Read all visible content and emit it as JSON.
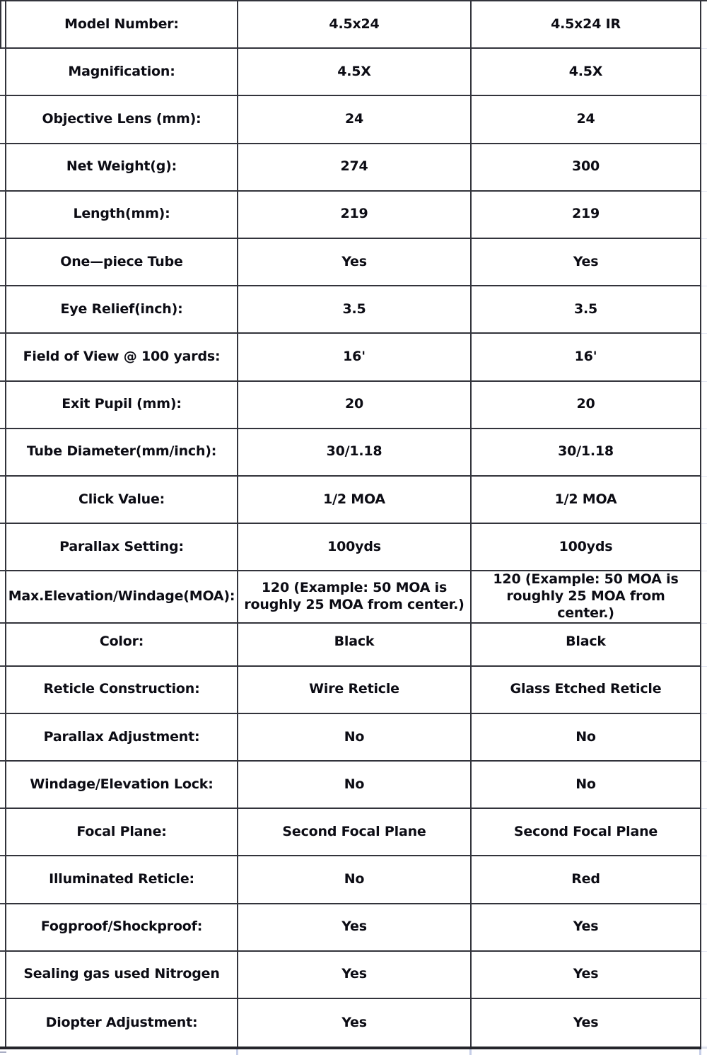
{
  "table": {
    "columns": {
      "model_a": "4.5x24",
      "model_b": "4.5x24 IR"
    },
    "rows": [
      {
        "label": "Model Number:",
        "values": [
          "4.5x24",
          "4.5x24 IR"
        ]
      },
      {
        "label": "Magnification:",
        "values": [
          "4.5X",
          "4.5X"
        ]
      },
      {
        "label": "Objective Lens (mm):",
        "values": [
          "24",
          "24"
        ]
      },
      {
        "label": "Net Weight(g):",
        "values": [
          "274",
          "300"
        ]
      },
      {
        "label": "Length(mm):",
        "values": [
          "219",
          "219"
        ]
      },
      {
        "label": "One—piece Tube",
        "values": [
          "Yes",
          "Yes"
        ]
      },
      {
        "label": "Eye Relief(inch):",
        "values": [
          "3.5",
          "3.5"
        ]
      },
      {
        "label": "Field of View @ 100 yards:",
        "values": [
          "16'",
          "16'"
        ]
      },
      {
        "label": "Exit Pupil (mm):",
        "values": [
          "20",
          "20"
        ]
      },
      {
        "label": "Tube Diameter(mm/inch):",
        "values": [
          "30/1.18",
          "30/1.18"
        ]
      },
      {
        "label": "Click Value:",
        "values": [
          "1/2 MOA",
          "1/2 MOA"
        ]
      },
      {
        "label": "Parallax Setting:",
        "values": [
          "100yds",
          "100yds"
        ]
      },
      {
        "label": "Max.Elevation/Windage(MOA):",
        "values": [
          "120 (Example: 50 MOA is\nroughly 25 MOA from center.)",
          "120 (Example: 50 MOA is\nroughly 25 MOA from center.)"
        ]
      },
      {
        "label": "Color:",
        "values": [
          "Black",
          "Black"
        ]
      },
      {
        "label": "Reticle Construction:",
        "values": [
          "Wire Reticle",
          "Glass Etched Reticle"
        ]
      },
      {
        "label": "Parallax Adjustment:",
        "values": [
          "No",
          "No"
        ]
      },
      {
        "label": "Windage/Elevation Lock:",
        "values": [
          "No",
          "No"
        ]
      },
      {
        "label": "Focal Plane:",
        "values": [
          "Second Focal Plane",
          "Second Focal Plane"
        ]
      },
      {
        "label": "Illuminated Reticle:",
        "values": [
          "No",
          "Red"
        ]
      },
      {
        "label": "Fogproof/Shockproof:",
        "values": [
          "Yes",
          "Yes"
        ]
      },
      {
        "label": "Sealing gas used Nitrogen",
        "values": [
          "Yes",
          "Yes"
        ]
      },
      {
        "label": "Diopter Adjustment:",
        "values": [
          "Yes",
          "Yes"
        ]
      }
    ]
  },
  "colors": {
    "text": "#0c0c14",
    "grid_line": "#32333b",
    "outer_bottom_border": "#24252b",
    "faint_continuation_line": "#c6cee8"
  }
}
